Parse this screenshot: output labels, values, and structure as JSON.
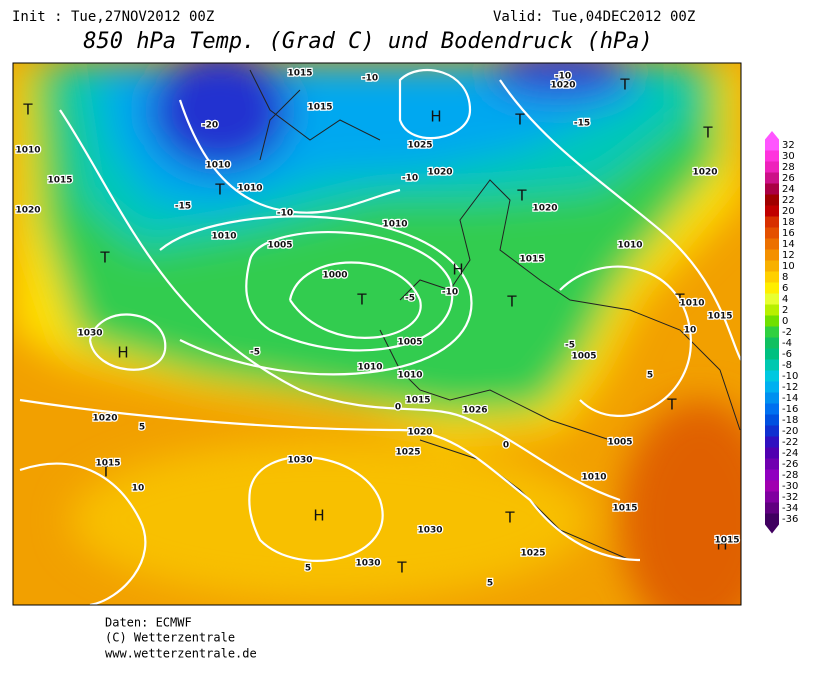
{
  "header": {
    "init": "Init : Tue,27NOV2012 00Z",
    "valid": "Valid: Tue,04DEC2012 00Z",
    "title": "850 hPa Temp. (Grad C) und Bodendruck (hPa)"
  },
  "footer": [
    "Daten: ECMWF",
    "(C) Wetterzentrale",
    "www.wetterzentrale.de"
  ],
  "colorbar": {
    "levels": [
      32,
      30,
      28,
      26,
      24,
      22,
      20,
      18,
      16,
      14,
      12,
      10,
      8,
      6,
      4,
      2,
      0,
      -2,
      -4,
      -6,
      -8,
      -10,
      -12,
      -14,
      -16,
      -18,
      -20,
      -22,
      -24,
      -26,
      -28,
      -30,
      -32,
      -34,
      -36
    ],
    "colors": [
      "#ff55ff",
      "#ff33dd",
      "#ee22bb",
      "#cc1188",
      "#aa0044",
      "#a00000",
      "#c00000",
      "#d83000",
      "#e45000",
      "#ec7000",
      "#f49000",
      "#f8b000",
      "#ffd000",
      "#ffee00",
      "#e8ff30",
      "#b8f000",
      "#70e000",
      "#30d040",
      "#10c060",
      "#00c080",
      "#00c8b0",
      "#00c8e0",
      "#00b0f0",
      "#0090f0",
      "#0070f0",
      "#0050e0",
      "#1030d0",
      "#3010c0",
      "#5000b0",
      "#7000b0",
      "#9000c0",
      "#a000b0",
      "#8000a0",
      "#600080",
      "#400060"
    ]
  },
  "map": {
    "labels": [
      "H",
      "T",
      "H",
      "H",
      "T",
      "T",
      "T",
      "T",
      "T",
      "T",
      "T",
      "H",
      "T",
      "T",
      "H",
      "T",
      "T",
      "T",
      "T",
      "1010",
      "1015",
      "1020",
      "1010",
      "1010",
      "1010",
      "1005",
      "1000",
      "1005",
      "1010",
      "1010",
      "1015",
      "1020",
      "1025",
      "1030",
      "1030",
      "1030",
      "1025",
      "1015",
      "1010",
      "1005",
      "1005",
      "1010",
      "1015",
      "1010",
      "1020",
      "1020",
      "1020",
      "1025",
      "1020",
      "1015",
      "1015",
      "1030",
      "1020",
      "1015",
      "1026",
      "1015",
      "1010",
      "1015",
      "-10",
      "-20",
      "-15",
      "-10",
      "-10",
      "-5",
      "-10",
      "-5",
      "-5",
      "0",
      "0",
      "5",
      "10",
      "5",
      "5",
      "5",
      "10",
      "-15",
      "-10"
    ]
  }
}
